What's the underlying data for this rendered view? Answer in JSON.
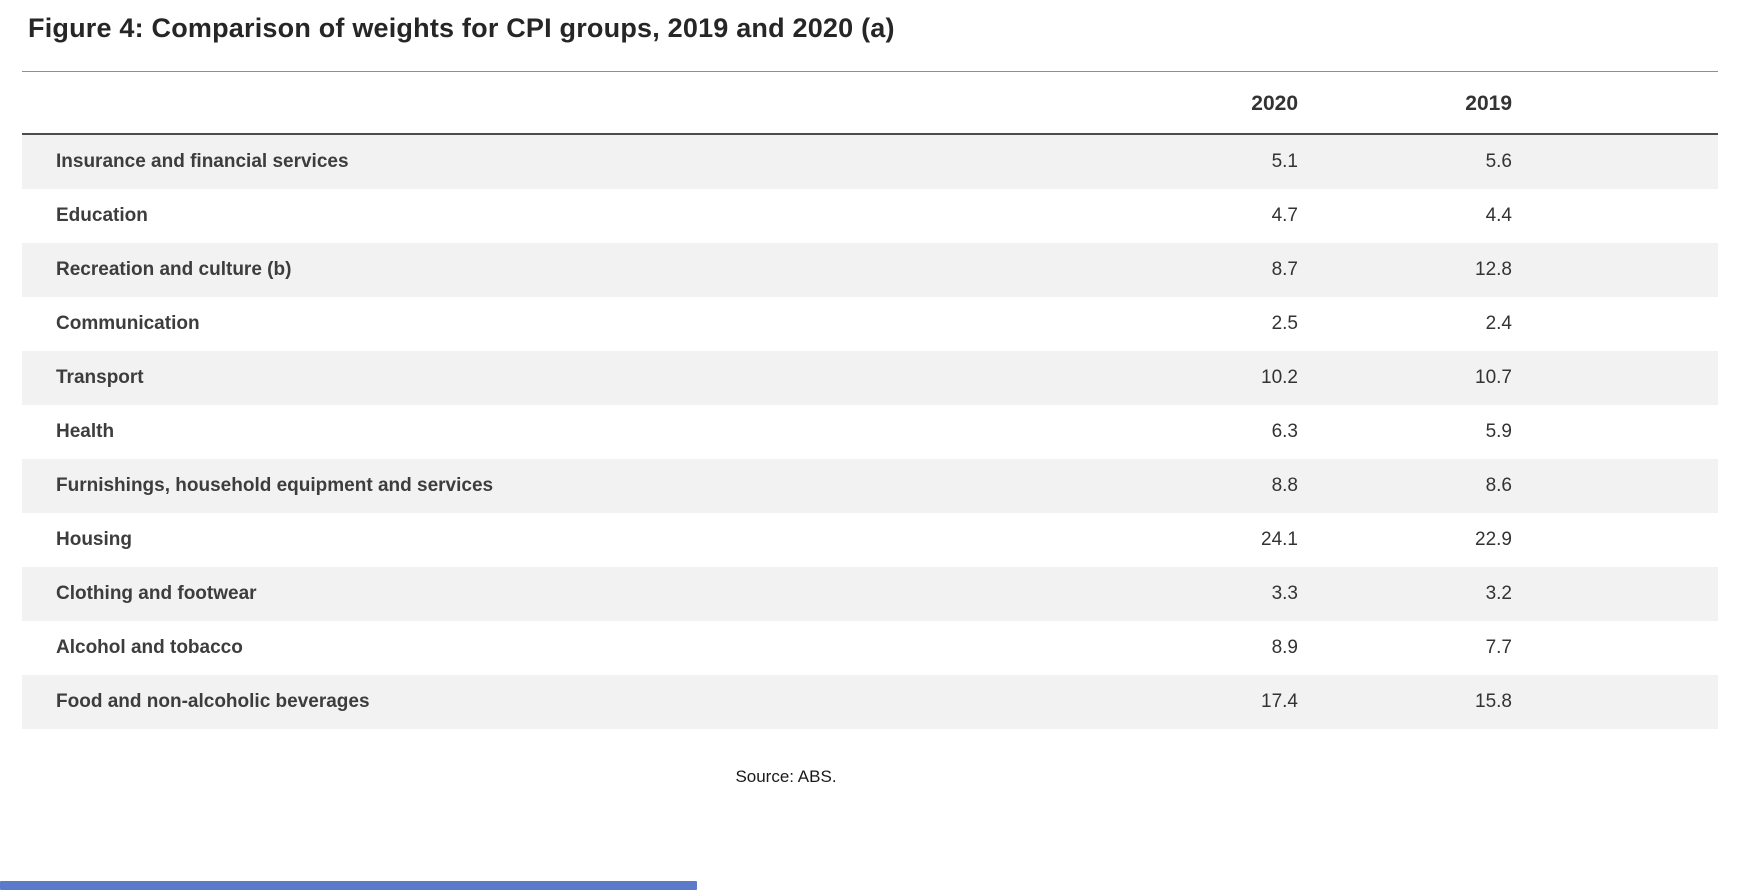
{
  "accent_color": "#5b7ac9",
  "chart_data": {
    "type": "table",
    "title": "Figure 4: Comparison of weights for CPI groups, 2019 and 2020 (a)",
    "columns": [
      "",
      "2020",
      "2019"
    ],
    "rows": [
      {
        "label": "Insurance and financial services",
        "v2020": "5.1",
        "v2019": "5.6"
      },
      {
        "label": "Education",
        "v2020": "4.7",
        "v2019": "4.4"
      },
      {
        "label": "Recreation and culture (b)",
        "v2020": "8.7",
        "v2019": "12.8"
      },
      {
        "label": "Communication",
        "v2020": "2.5",
        "v2019": "2.4"
      },
      {
        "label": "Transport",
        "v2020": "10.2",
        "v2019": "10.7"
      },
      {
        "label": "Health",
        "v2020": "6.3",
        "v2019": "5.9"
      },
      {
        "label": "Furnishings, household equipment and services",
        "v2020": "8.8",
        "v2019": "8.6"
      },
      {
        "label": "Housing",
        "v2020": "24.1",
        "v2019": "22.9"
      },
      {
        "label": "Clothing and footwear",
        "v2020": "3.3",
        "v2019": "3.2"
      },
      {
        "label": "Alcohol and tobacco",
        "v2020": "8.9",
        "v2019": "7.7"
      },
      {
        "label": "Food and non-alcoholic beverages",
        "v2020": "17.4",
        "v2019": "15.8"
      }
    ],
    "source": "Source: ABS.",
    "layout": {
      "row_stripe_color": "#f2f2f2",
      "legend_position": "none",
      "grid": "off"
    }
  }
}
